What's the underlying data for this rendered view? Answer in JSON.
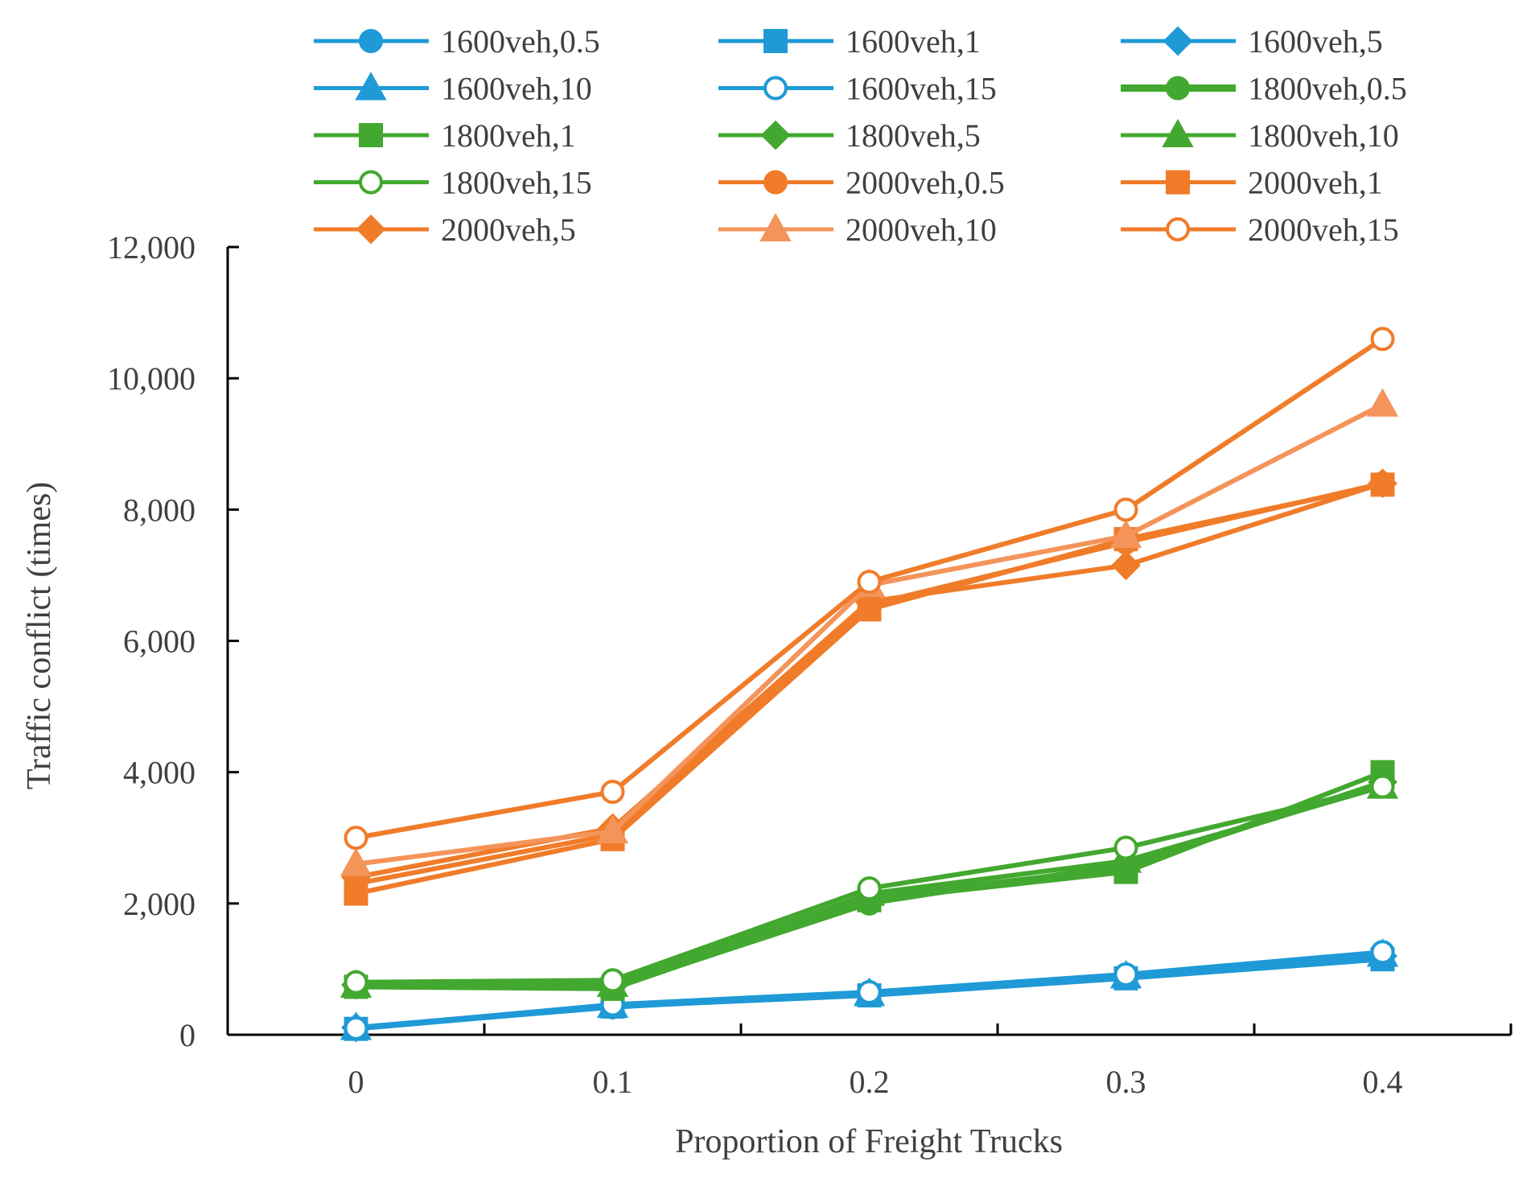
{
  "chart_data": {
    "type": "line",
    "title": "",
    "xlabel": "Proportion of Freight  Trucks",
    "ylabel": "Traffic conflict (times)",
    "x": [
      0,
      0.1,
      0.2,
      0.3,
      0.4
    ],
    "x_tick_labels": [
      "0",
      "0.1",
      "0.2",
      "0.3",
      "0.4"
    ],
    "xlim": [
      -0.05,
      0.45
    ],
    "ylim": [
      0,
      12000
    ],
    "y_ticks": [
      0,
      2000,
      4000,
      6000,
      8000,
      10000,
      12000
    ],
    "y_tick_labels": [
      "0",
      "2,000",
      "4,000",
      "6,000",
      "8,000",
      "10,000",
      "12,000"
    ],
    "grid": false,
    "legend_position": "top",
    "series": [
      {
        "name": "1600veh,0.5",
        "values": [
          100,
          420,
          630,
          880,
          1180
        ],
        "color": "#1f9ad6",
        "marker": "circle",
        "filled": true
      },
      {
        "name": "1600veh,1",
        "values": [
          90,
          430,
          600,
          860,
          1150
        ],
        "color": "#1f9ad6",
        "marker": "square",
        "filled": true
      },
      {
        "name": "1600veh,5",
        "values": [
          110,
          450,
          640,
          900,
          1200
        ],
        "color": "#1f9ad6",
        "marker": "diamond",
        "filled": true
      },
      {
        "name": "1600veh,10",
        "values": [
          105,
          440,
          620,
          890,
          1220
        ],
        "color": "#1f9ad6",
        "marker": "triangle",
        "filled": true
      },
      {
        "name": "1600veh,15",
        "values": [
          100,
          460,
          650,
          920,
          1260
        ],
        "color": "#1f9ad6",
        "marker": "circle",
        "filled": false
      },
      {
        "name": "1800veh,0.5",
        "values": [
          740,
          720,
          2000,
          2600,
          3800
        ],
        "color": "#43a82f",
        "marker": "circle",
        "filled": true
      },
      {
        "name": "1800veh,1",
        "values": [
          730,
          700,
          2050,
          2480,
          4000
        ],
        "color": "#43a82f",
        "marker": "square",
        "filled": true
      },
      {
        "name": "1800veh,5",
        "values": [
          760,
          740,
          2100,
          2550,
          3850
        ],
        "color": "#43a82f",
        "marker": "diamond",
        "filled": true
      },
      {
        "name": "1800veh,10",
        "values": [
          750,
          760,
          2150,
          2650,
          3780
        ],
        "color": "#43a82f",
        "marker": "triangle",
        "filled": true
      },
      {
        "name": "1800veh,15",
        "values": [
          800,
          830,
          2230,
          2850,
          3780
        ],
        "color": "#43a82f",
        "marker": "circle",
        "filled": false
      },
      {
        "name": "2000veh,0.5",
        "values": [
          2300,
          3050,
          6550,
          7500,
          8400
        ],
        "color": "#f07c2a",
        "marker": "circle",
        "filled": true
      },
      {
        "name": "2000veh,1",
        "values": [
          2150,
          2980,
          6480,
          7550,
          8380
        ],
        "color": "#f07c2a",
        "marker": "square",
        "filled": true
      },
      {
        "name": "2000veh,5",
        "values": [
          2400,
          3150,
          6600,
          7150,
          8400
        ],
        "color": "#f07c2a",
        "marker": "diamond",
        "filled": true
      },
      {
        "name": "2000veh,10",
        "values": [
          2600,
          3100,
          6850,
          7600,
          9600
        ],
        "color": "#f4945a",
        "marker": "triangle",
        "filled": true
      },
      {
        "name": "2000veh,15",
        "values": [
          3000,
          3700,
          6900,
          8000,
          10600
        ],
        "color": "#f07c2a",
        "marker": "circle",
        "filled": false
      }
    ]
  }
}
